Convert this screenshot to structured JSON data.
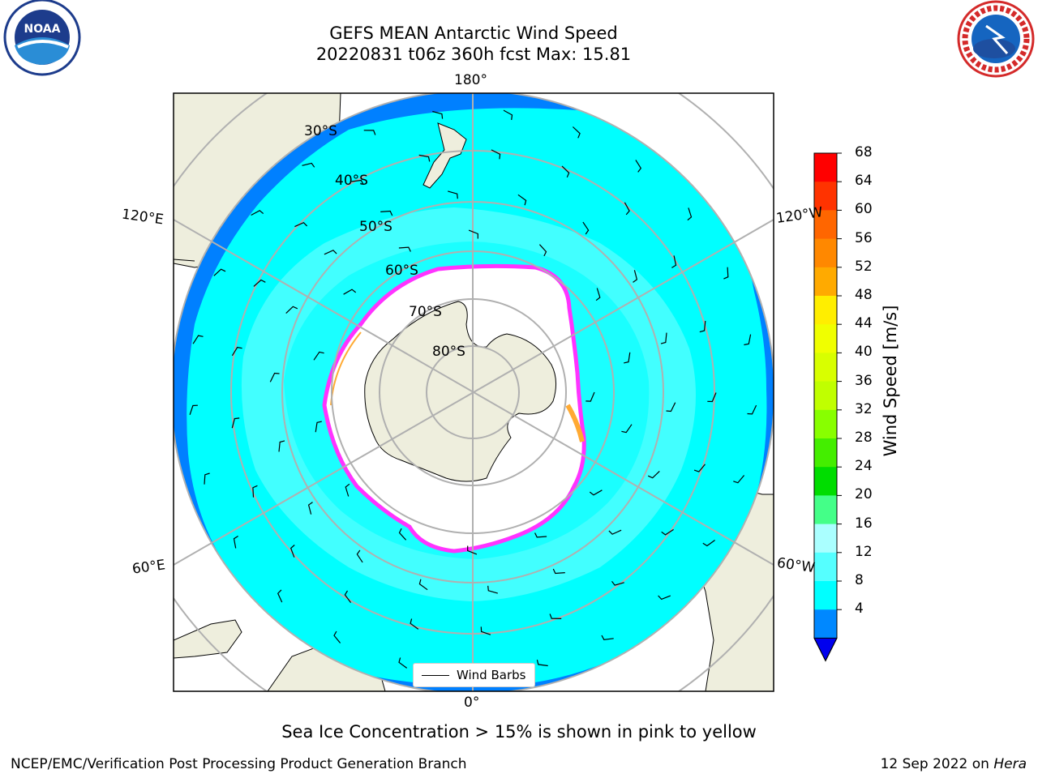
{
  "header": {
    "title_line1": "GEFS MEAN Antarctic Wind Speed",
    "title_line2": "20220831 t06z 360h fcst   Max: 15.81"
  },
  "map": {
    "projection": "south-polar-stereographic",
    "latitude_labels": [
      "30°S",
      "40°S",
      "50°S",
      "60°S",
      "70°S",
      "80°S"
    ],
    "longitude_labels": {
      "top": "180°",
      "upper_left": "120°E",
      "upper_right": "120°W",
      "lower_left": "60°E",
      "lower_right": "60°W",
      "bottom": "0°"
    },
    "colors": {
      "ocean_low": "#0080ff",
      "ocean_mid": "#00ffff",
      "ocean_high": "#4dffff",
      "land": "#eeeedd",
      "sea_ice_edge": "#ff33ff",
      "sea_ice_inner": "#ffaa33",
      "grid": "#b0b0b0"
    },
    "legend": {
      "label": "Wind Barbs"
    }
  },
  "colorbar": {
    "label": "Wind Speed [m/s]",
    "ticks": [
      "68",
      "64",
      "60",
      "56",
      "52",
      "48",
      "44",
      "40",
      "36",
      "32",
      "28",
      "24",
      "20",
      "16",
      "12",
      "8",
      "4"
    ],
    "colors": [
      "#ff0000",
      "#ff3300",
      "#ff6600",
      "#ff8800",
      "#ffaa00",
      "#ffee00",
      "#f0ff00",
      "#d8ff00",
      "#c0ff00",
      "#88ff00",
      "#44ee00",
      "#00dd00",
      "#44ff88",
      "#aaffff",
      "#55ffff",
      "#00ffff",
      "#0088ff"
    ],
    "under_color": "#0000ee"
  },
  "caption": "Sea Ice Concentration > 15% is shown in pink to yellow",
  "footer": {
    "left": "NCEP/EMC/Verification Post Processing Product Generation Branch",
    "right_date": "12 Sep 2022 on ",
    "right_system": "Hera"
  },
  "logos": {
    "noaa": {
      "text": "NOAA"
    },
    "nws": {
      "text": "NATIONAL WEATHER SERVICE"
    }
  }
}
